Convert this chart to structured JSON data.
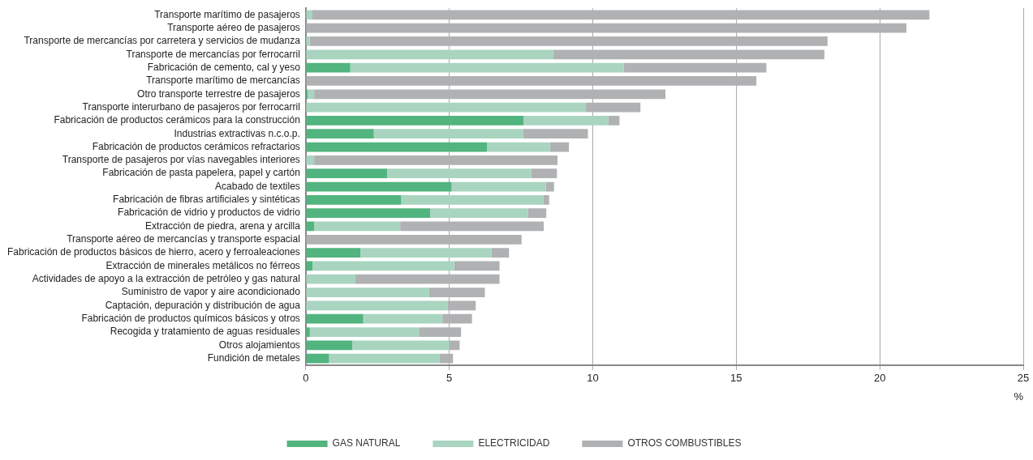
{
  "chart_data": {
    "type": "bar",
    "orientation": "horizontal",
    "stacked": true,
    "categories": [
      "Transporte marítimo de pasajeros",
      "Transporte aéreo de pasajeros",
      "Transporte de mercancías por carretera y servicios de mudanza",
      "Transporte de mercancías por ferrocarril",
      "Fabricación de cemento, cal y yeso",
      "Transporte marítimo de mercancías",
      "Otro transporte terrestre de pasajeros",
      "Transporte interurbano de pasajeros por ferrocarril",
      "Fabricación de productos cerámicos para la construcción",
      "Industrias extractivas n.c.o.p.",
      "Fabricación de productos cerámicos refractarios",
      "Transporte de pasajeros por vías navegables interiores",
      "Fabricación de pasta papelera, papel y cartón",
      "Acabado de textiles",
      "Fabricación de fibras artificiales y sintéticas",
      "Fabricación de vidrio y productos de vidrio",
      "Extracción de piedra, arena y arcilla",
      "Transporte aéreo de mercancías y transporte espacial",
      "Fabricación de productos básicos de hierro, acero y ferroaleaciones",
      "Extracción de minerales metálicos no férreos",
      "Actividades de apoyo a la extracción de petróleo y gas natural",
      "Suministro de vapor y aire acondicionado",
      "Captación, depuración y distribución de agua",
      "Fabricación de productos químicos básicos y otros",
      "Recogida y tratamiento de aguas residuales",
      "Otros alojamientos",
      "Fundición de metales"
    ],
    "series": [
      {
        "name": "GAS NATURAL",
        "color": "#52b47e",
        "values": [
          0,
          0,
          0,
          0,
          1.55,
          0,
          0.06,
          0,
          7.59,
          2.37,
          6.31,
          0,
          2.83,
          5.08,
          3.32,
          4.33,
          0.29,
          0,
          1.9,
          0.23,
          0,
          0,
          0,
          2.0,
          0.14,
          1.62,
          0.81
        ]
      },
      {
        "name": "ELECTRICIDAD",
        "color": "#a9d5c0",
        "values": [
          0.21,
          0,
          0.14,
          8.63,
          9.53,
          0,
          0.23,
          9.76,
          2.95,
          5.21,
          2.2,
          0.29,
          5.02,
          3.28,
          4.95,
          3.41,
          3.0,
          0,
          4.57,
          4.94,
          1.73,
          4.3,
          4.95,
          2.76,
          3.8,
          3.38,
          3.86
        ]
      },
      {
        "name": "OTROS COMBUSTIBLES",
        "color": "#b0b1b3",
        "values": [
          21.52,
          20.93,
          18.04,
          9.44,
          4.97,
          15.7,
          12.24,
          1.9,
          0.39,
          2.25,
          0.66,
          8.48,
          0.9,
          0.29,
          0.21,
          0.64,
          5.0,
          7.52,
          0.61,
          1.58,
          5.02,
          1.94,
          0.97,
          1.03,
          1.47,
          0.36,
          0.46
        ]
      }
    ],
    "xlabel": "%",
    "xlim": [
      0,
      25
    ],
    "xticks": [
      0,
      5,
      10,
      15,
      20,
      25
    ],
    "grid": "x",
    "legend": "bottom"
  }
}
